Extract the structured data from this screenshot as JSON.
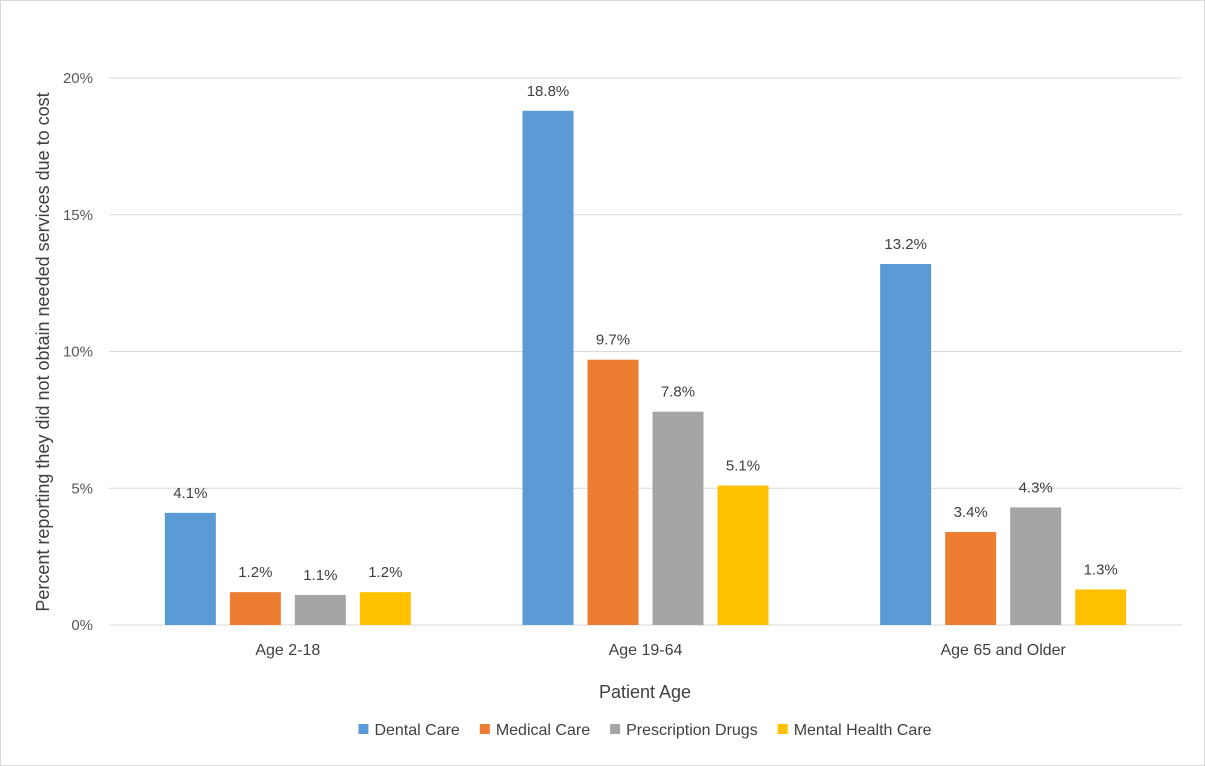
{
  "chart_data": {
    "type": "bar",
    "title": "",
    "xlabel": "Patient Age",
    "ylabel": "Percent reporting they did not obtain needed services due to cost",
    "ylim": [
      0,
      20
    ],
    "y_ticks": [
      0,
      5,
      10,
      15,
      20
    ],
    "y_tick_labels": [
      "0%",
      "5%",
      "10%",
      "15%",
      "20%"
    ],
    "grid": true,
    "legend_position": "bottom",
    "categories": [
      "Age 2-18",
      "Age 19-64",
      "Age 65 and Older"
    ],
    "series": [
      {
        "name": "Dental Care",
        "color": "#5b9bd5",
        "values": [
          4.1,
          18.8,
          13.2
        ],
        "labels": [
          "4.1%",
          "18.8%",
          "13.2%"
        ]
      },
      {
        "name": "Medical Care",
        "color": "#ed7d31",
        "values": [
          1.2,
          9.7,
          3.4
        ],
        "labels": [
          "1.2%",
          "9.7%",
          "3.4%"
        ]
      },
      {
        "name": "Prescription Drugs",
        "color": "#a5a5a5",
        "values": [
          1.1,
          7.8,
          4.3
        ],
        "labels": [
          "1.1%",
          "7.8%",
          "4.3%"
        ]
      },
      {
        "name": "Mental Health Care",
        "color": "#ffc000",
        "values": [
          1.2,
          5.1,
          1.3
        ],
        "labels": [
          "1.2%",
          "5.1%",
          "1.3%"
        ]
      }
    ]
  }
}
